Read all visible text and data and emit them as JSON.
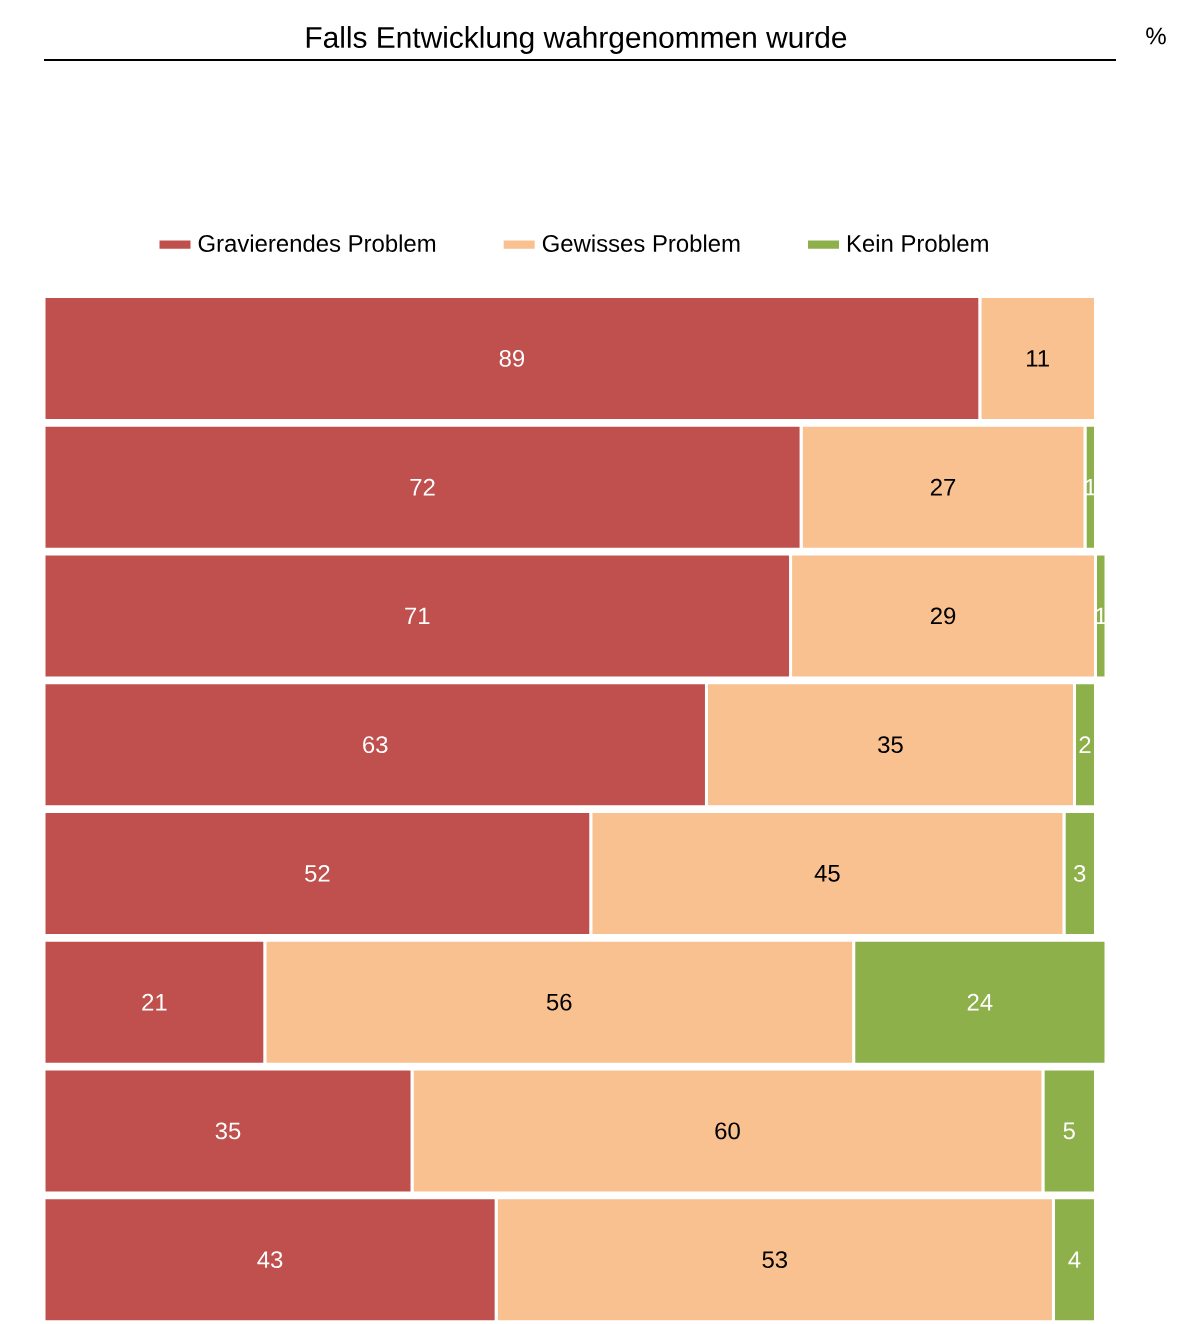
{
  "chart_data": {
    "type": "bar",
    "orientation": "horizontal",
    "stacked": true,
    "title": "Falls Entwicklung wahrgenommen wurde",
    "annotations": [
      "%"
    ],
    "categories": [
      null,
      null,
      null,
      null,
      null,
      null,
      null,
      null
    ],
    "legend": "top",
    "series": [
      {
        "name": "Gravierendes Problem",
        "color": "#c0504d",
        "values": [
          89,
          72,
          71,
          63,
          52,
          21,
          35,
          43
        ],
        "value_labels": [
          "89",
          "72",
          "71",
          "63",
          "52",
          "21",
          "35",
          "43"
        ]
      },
      {
        "name": "Gewisses Problem",
        "color": "#f9c090",
        "values": [
          11,
          27,
          29,
          35,
          45,
          56,
          60,
          53
        ],
        "value_labels": [
          "11",
          "27",
          "29",
          "35",
          "45",
          "56",
          "60",
          "53"
        ]
      },
      {
        "name": "Kein Problem",
        "color": "#8db04a",
        "values": [
          0,
          1,
          1,
          2,
          3,
          24,
          5,
          4
        ],
        "value_labels": [
          null,
          "1",
          "1",
          "2",
          "3",
          "24",
          "5",
          "4"
        ]
      }
    ]
  }
}
